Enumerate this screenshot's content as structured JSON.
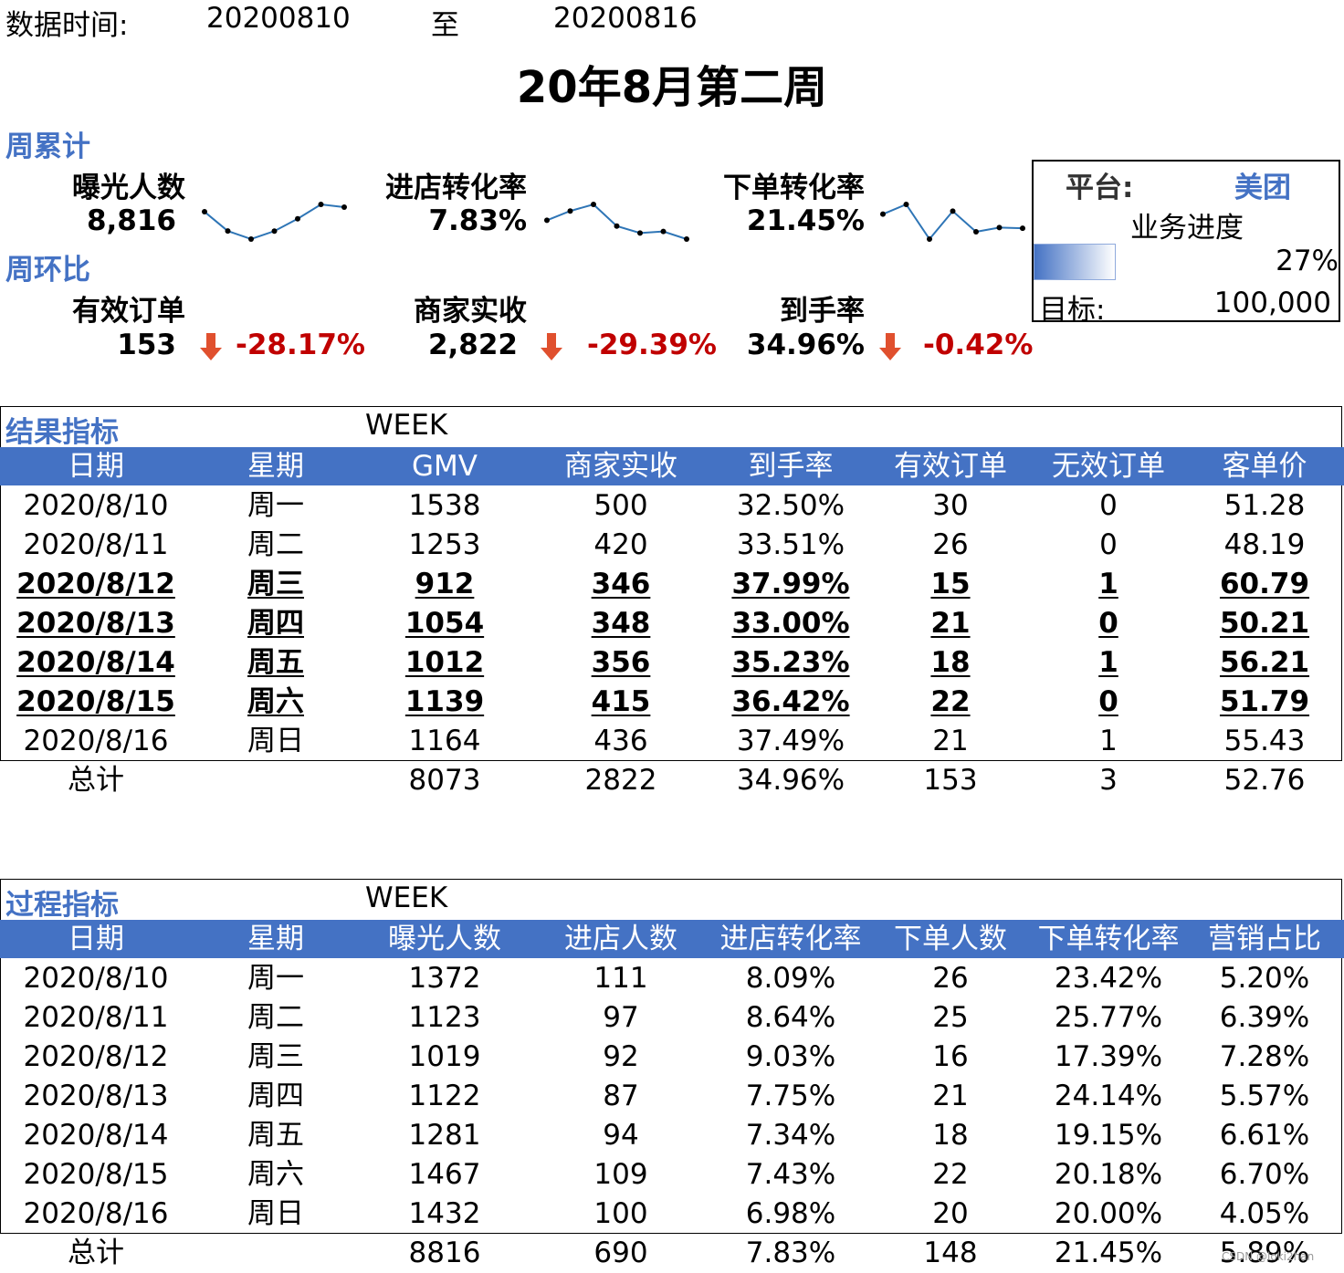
{
  "header": {
    "data_time_label": "数据时间:",
    "start_date": "20200810",
    "to_label": "至",
    "end_date": "20200816",
    "title": "20年8月第二周"
  },
  "summary": {
    "weekly_label": "周累计",
    "wow_label": "周环比",
    "kpis": [
      {
        "label": "曝光人数",
        "value": "8,816",
        "spark": [
          1372,
          1123,
          1019,
          1122,
          1281,
          1467,
          1432
        ]
      },
      {
        "label": "进店转化率",
        "value": "7.83%",
        "spark": [
          8.09,
          8.64,
          9.03,
          7.75,
          7.34,
          7.43,
          6.98
        ]
      },
      {
        "label": "下单转化率",
        "value": "21.45%",
        "spark": [
          23.42,
          25.77,
          17.39,
          24.14,
          19.15,
          20.18,
          20.0
        ]
      }
    ],
    "changes": [
      {
        "label": "有效订单",
        "value": "153",
        "change": "-28.17%"
      },
      {
        "label": "商家实收",
        "value": "2,822",
        "change": "-29.39%"
      },
      {
        "label": "到手率",
        "value": "34.96%",
        "change": "-0.42%"
      }
    ],
    "arrow_icon": "down-arrow-icon",
    "negative_color": "#C00000",
    "spark_color": "#2E75B6"
  },
  "platform": {
    "label": "平台:",
    "name": "美团",
    "progress_label": "业务进度",
    "progress": "27%",
    "progress_fraction": 0.27,
    "target_label": "目标:",
    "target": "100,000"
  },
  "result_table": {
    "title": "结果指标",
    "period": "WEEK",
    "header_color": "#4472C4",
    "columns": [
      "日期",
      "星期",
      "GMV",
      "商家实收",
      "到手率",
      "有效订单",
      "无效订单",
      "客单价"
    ],
    "rows": [
      {
        "cells": [
          "2020/8/10",
          "周一",
          "1538",
          "500",
          "32.50%",
          "30",
          "0",
          "51.28"
        ],
        "highlight": false
      },
      {
        "cells": [
          "2020/8/11",
          "周二",
          "1253",
          "420",
          "33.51%",
          "26",
          "0",
          "48.19"
        ],
        "highlight": false
      },
      {
        "cells": [
          "2020/8/12",
          "周三",
          "912",
          "346",
          "37.99%",
          "15",
          "1",
          "60.79"
        ],
        "highlight": true
      },
      {
        "cells": [
          "2020/8/13",
          "周四",
          "1054",
          "348",
          "33.00%",
          "21",
          "0",
          "50.21"
        ],
        "highlight": true
      },
      {
        "cells": [
          "2020/8/14",
          "周五",
          "1012",
          "356",
          "35.23%",
          "18",
          "1",
          "56.21"
        ],
        "highlight": true
      },
      {
        "cells": [
          "2020/8/15",
          "周六",
          "1139",
          "415",
          "36.42%",
          "22",
          "0",
          "51.79"
        ],
        "highlight": true
      },
      {
        "cells": [
          "2020/8/16",
          "周日",
          "1164",
          "436",
          "37.49%",
          "21",
          "1",
          "55.43"
        ],
        "highlight": false
      }
    ],
    "total": [
      "总计",
      "",
      "8073",
      "2822",
      "34.96%",
      "153",
      "3",
      "52.76"
    ]
  },
  "process_table": {
    "title": "过程指标",
    "period": "WEEK",
    "columns": [
      "日期",
      "星期",
      "曝光人数",
      "进店人数",
      "进店转化率",
      "下单人数",
      "下单转化率",
      "营销占比"
    ],
    "rows": [
      {
        "cells": [
          "2020/8/10",
          "周一",
          "1372",
          "111",
          "8.09%",
          "26",
          "23.42%",
          "5.20%"
        ],
        "highlight": false
      },
      {
        "cells": [
          "2020/8/11",
          "周二",
          "1123",
          "97",
          "8.64%",
          "25",
          "25.77%",
          "6.39%"
        ],
        "highlight": false
      },
      {
        "cells": [
          "2020/8/12",
          "周三",
          "1019",
          "92",
          "9.03%",
          "16",
          "17.39%",
          "7.28%"
        ],
        "highlight": false
      },
      {
        "cells": [
          "2020/8/13",
          "周四",
          "1122",
          "87",
          "7.75%",
          "21",
          "24.14%",
          "5.57%"
        ],
        "highlight": false
      },
      {
        "cells": [
          "2020/8/14",
          "周五",
          "1281",
          "94",
          "7.34%",
          "18",
          "19.15%",
          "6.61%"
        ],
        "highlight": false
      },
      {
        "cells": [
          "2020/8/15",
          "周六",
          "1467",
          "109",
          "7.43%",
          "22",
          "20.18%",
          "6.70%"
        ],
        "highlight": false
      },
      {
        "cells": [
          "2020/8/16",
          "周日",
          "1432",
          "100",
          "6.98%",
          "20",
          "20.00%",
          "4.05%"
        ],
        "highlight": false
      }
    ],
    "total": [
      "总计",
      "",
      "8816",
      "690",
      "7.83%",
      "148",
      "21.45%",
      "5.89%"
    ]
  },
  "watermark": "CSDN @loki2han"
}
